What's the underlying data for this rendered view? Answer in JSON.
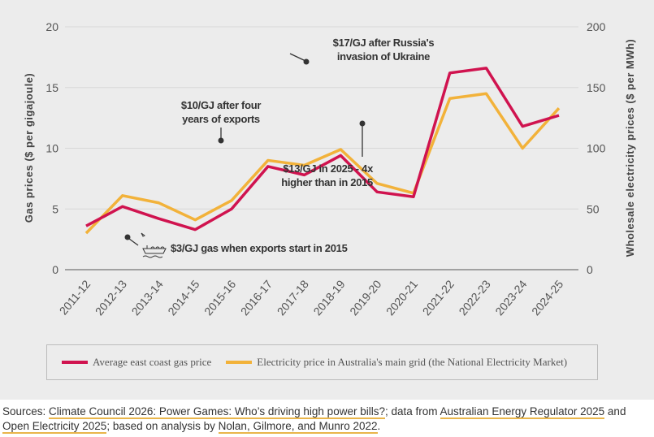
{
  "colors": {
    "gas": "#d0134f",
    "electricity": "#f2b23a"
  },
  "chart_data": {
    "type": "line",
    "categories": [
      "2011-12",
      "2012-13",
      "2013-14",
      "2014-15",
      "2015-16",
      "2016-17",
      "2017-18",
      "2018-19",
      "2019-20",
      "2020-21",
      "2021-22",
      "2022-23",
      "2023-24",
      "2024-25"
    ],
    "series": [
      {
        "name": "Average east coast gas price",
        "axis": "left",
        "values": [
          3.6,
          5.2,
          4.2,
          3.3,
          5.0,
          8.5,
          7.8,
          9.4,
          6.4,
          6.0,
          16.2,
          16.6,
          11.8,
          12.7
        ]
      },
      {
        "name": "Electricity price in Australia's main grid (the National Electricity Market)",
        "axis": "right",
        "values": [
          30,
          61,
          55,
          41,
          57,
          90,
          86,
          99,
          71,
          63,
          141,
          145,
          100,
          133
        ]
      }
    ],
    "ylabel": "Gas prices ($ per gigajoule)",
    "y2label": "Wholesale electricity prices ($ per MWh)",
    "ylim": [
      0,
      20
    ],
    "y2lim": [
      0,
      200
    ],
    "yticks": [
      "0",
      "5",
      "10",
      "15",
      "20"
    ],
    "y2ticks": [
      "0",
      "50",
      "100",
      "150",
      "200"
    ],
    "grid": true,
    "legend": "bottom",
    "annotations": [
      {
        "lines": [
          "$17/GJ after Russia's",
          "invasion of Ukraine"
        ]
      },
      {
        "lines": [
          "$10/GJ after four",
          "years of exports"
        ]
      },
      {
        "lines": [
          "$13/GJ in 2025 - 4x",
          "higher than in 2015"
        ]
      },
      {
        "lines": [
          "$3/GJ gas when exports start in 2015"
        ]
      }
    ]
  },
  "sources": {
    "prefix": "Sources: ",
    "link1": "Climate Council 2026: Power Games: Who’s driving high power bills?",
    "mid1": "; data from ",
    "link2": "Australian Energy Regulator 2025",
    "mid2": " and ",
    "link3": "Open Electricity 2025",
    "mid3": "; based on analysis by ",
    "link4": "Nolan, Gilmore, and Munro 2022",
    "end": "."
  }
}
